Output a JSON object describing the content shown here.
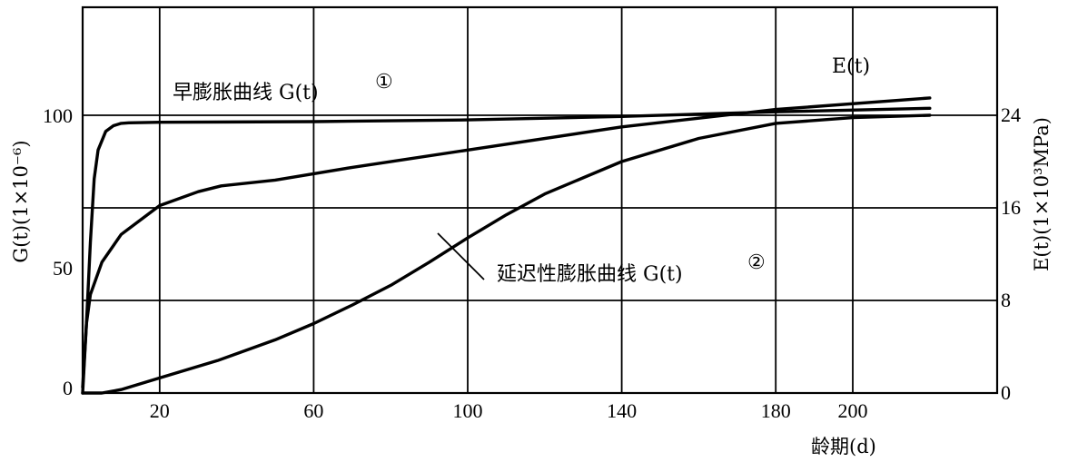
{
  "chart_data": {
    "type": "line",
    "xlabel": "龄期(d)",
    "ylabel_left": "G(t)(1×10⁻⁶)",
    "ylabel_right": "E(t)(1×10³MPa)",
    "x_ticks": [
      20,
      60,
      100,
      140,
      180,
      200
    ],
    "y_left_ticks": [
      0,
      50,
      100
    ],
    "y_right_ticks": [
      0,
      8,
      16,
      24
    ],
    "xlim": [
      0,
      220
    ],
    "ylim_right": [
      0,
      24
    ],
    "grid": true,
    "series": [
      {
        "name": "早膨胀曲线 G(t)①",
        "label_text": "早膨胀曲线 G(t)",
        "marker": "①",
        "axis": "right",
        "x": [
          0,
          1,
          2,
          3,
          4,
          6,
          8,
          10,
          12,
          20,
          60,
          100,
          140,
          180,
          220
        ],
        "y": [
          0.5,
          6,
          13,
          18.5,
          21,
          22.6,
          23.1,
          23.3,
          23.35,
          23.4,
          23.45,
          23.6,
          23.9,
          24.3,
          24.6
        ]
      },
      {
        "name": "E(t)",
        "label_text": "E(t)",
        "axis": "right",
        "x": [
          0,
          1,
          2,
          5,
          10,
          20,
          30,
          36,
          50,
          70,
          100,
          140,
          180,
          220
        ],
        "y": [
          0,
          6,
          8.5,
          11.3,
          13.7,
          16.2,
          17.4,
          17.9,
          18.4,
          19.5,
          21,
          23,
          24.5,
          25.5
        ]
      },
      {
        "name": "延迟性膨胀曲线 G(t)②",
        "label_text": "延迟性膨胀曲线 G(t)",
        "marker": "②",
        "axis": "right",
        "x": [
          0,
          5,
          10,
          20,
          35,
          50,
          60,
          70,
          80,
          90,
          100,
          110,
          120,
          140,
          160,
          180,
          200,
          220
        ],
        "y": [
          0,
          0,
          0.3,
          1.3,
          2.8,
          4.6,
          6,
          7.6,
          9.3,
          11.3,
          13.4,
          15.4,
          17.2,
          20,
          22,
          23.3,
          23.8,
          24
        ]
      }
    ]
  }
}
